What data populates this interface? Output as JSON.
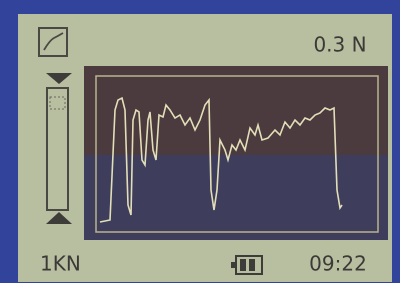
{
  "screen": {
    "reading": "0.3 N",
    "range": "1KN",
    "time": "09:22"
  }
}
